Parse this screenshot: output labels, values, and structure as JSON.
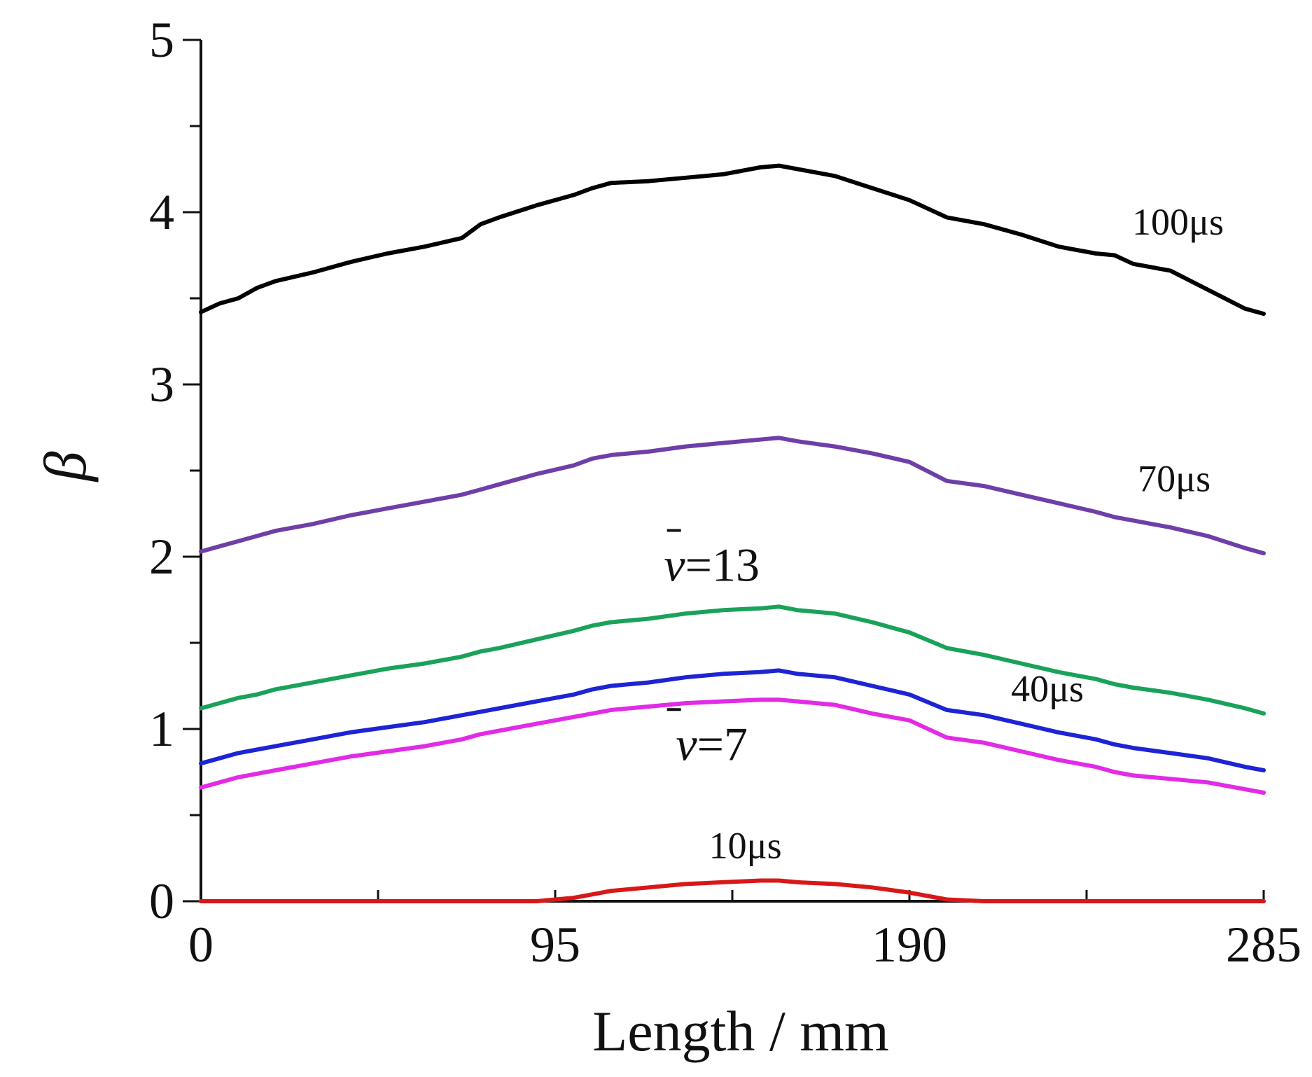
{
  "chart_data": {
    "type": "line",
    "title": "",
    "xlabel": "Length / mm",
    "ylabel": "β",
    "xlim": [
      0,
      285
    ],
    "ylim": [
      0,
      5
    ],
    "x_ticks": [
      0,
      95,
      190,
      285
    ],
    "x_tick_labels": [
      "0",
      "95",
      "190",
      "285"
    ],
    "x_minor_ticks": [
      0,
      47.5,
      95,
      142.5,
      190,
      237.5,
      285
    ],
    "y_ticks": [
      0,
      1,
      2,
      3,
      4,
      5
    ],
    "y_tick_labels": [
      "0",
      "1",
      "2",
      "3",
      "4",
      "5"
    ],
    "y_minor_ticks": [
      0.5,
      1.5,
      2.5,
      3.5,
      4.5
    ],
    "grid": false,
    "x": [
      0,
      5,
      10,
      15,
      20,
      30,
      40,
      50,
      60,
      70,
      75,
      80,
      90,
      100,
      105,
      110,
      120,
      130,
      140,
      150,
      155,
      160,
      170,
      180,
      190,
      200,
      210,
      220,
      230,
      240,
      245,
      250,
      260,
      270,
      280,
      285
    ],
    "series": [
      {
        "name": "100μs",
        "color": "#000000",
        "values": [
          3.42,
          3.47,
          3.5,
          3.56,
          3.6,
          3.65,
          3.71,
          3.76,
          3.8,
          3.85,
          3.93,
          3.97,
          4.04,
          4.1,
          4.14,
          4.17,
          4.18,
          4.2,
          4.22,
          4.26,
          4.27,
          4.25,
          4.21,
          4.14,
          4.07,
          3.97,
          3.93,
          3.87,
          3.8,
          3.76,
          3.75,
          3.7,
          3.66,
          3.55,
          3.44,
          3.41
        ]
      },
      {
        "name": "70μs",
        "color": "#6f3fa8",
        "values": [
          2.03,
          2.06,
          2.09,
          2.12,
          2.15,
          2.19,
          2.24,
          2.28,
          2.32,
          2.36,
          2.39,
          2.42,
          2.48,
          2.53,
          2.57,
          2.59,
          2.61,
          2.64,
          2.66,
          2.68,
          2.69,
          2.67,
          2.64,
          2.6,
          2.55,
          2.44,
          2.41,
          2.36,
          2.31,
          2.26,
          2.23,
          2.21,
          2.17,
          2.12,
          2.05,
          2.02
        ]
      },
      {
        "name": "ν̄=13",
        "color": "#1aa25a",
        "values": [
          1.12,
          1.15,
          1.18,
          1.2,
          1.23,
          1.27,
          1.31,
          1.35,
          1.38,
          1.42,
          1.45,
          1.47,
          1.52,
          1.57,
          1.6,
          1.62,
          1.64,
          1.67,
          1.69,
          1.7,
          1.71,
          1.69,
          1.67,
          1.62,
          1.56,
          1.47,
          1.43,
          1.38,
          1.33,
          1.29,
          1.26,
          1.24,
          1.21,
          1.17,
          1.12,
          1.09
        ]
      },
      {
        "name": "40μs",
        "color": "#1d24d4",
        "values": [
          0.8,
          0.83,
          0.86,
          0.88,
          0.9,
          0.94,
          0.98,
          1.01,
          1.04,
          1.08,
          1.1,
          1.12,
          1.16,
          1.2,
          1.23,
          1.25,
          1.27,
          1.3,
          1.32,
          1.33,
          1.34,
          1.32,
          1.3,
          1.25,
          1.2,
          1.11,
          1.08,
          1.03,
          0.98,
          0.94,
          0.91,
          0.89,
          0.86,
          0.83,
          0.78,
          0.76
        ]
      },
      {
        "name": "ν̄=7",
        "color": "#e22be6",
        "values": [
          0.66,
          0.69,
          0.72,
          0.74,
          0.76,
          0.8,
          0.84,
          0.87,
          0.9,
          0.94,
          0.97,
          0.99,
          1.03,
          1.07,
          1.09,
          1.11,
          1.13,
          1.15,
          1.16,
          1.17,
          1.17,
          1.16,
          1.14,
          1.09,
          1.05,
          0.95,
          0.92,
          0.87,
          0.82,
          0.78,
          0.75,
          0.73,
          0.71,
          0.69,
          0.65,
          0.63
        ]
      },
      {
        "name": "10μs",
        "color": "#d81818",
        "values": [
          0,
          0,
          0,
          0,
          0,
          0,
          0,
          0,
          0,
          0,
          0,
          0,
          0,
          0.02,
          0.04,
          0.06,
          0.08,
          0.1,
          0.11,
          0.12,
          0.12,
          0.11,
          0.1,
          0.08,
          0.05,
          0.01,
          0,
          0,
          0,
          0,
          0,
          0,
          0,
          0,
          0,
          0
        ]
      }
    ],
    "annotations": [
      {
        "name": "100μs",
        "text": "100μs",
        "x": 262,
        "y": 3.87,
        "color": "#111111"
      },
      {
        "name": "70μs",
        "text": "70μs",
        "x": 261,
        "y": 2.38,
        "color": "#111111"
      },
      {
        "name": "ν̄=13",
        "symbol": "ν",
        "text": "=13",
        "x": 137,
        "y": 1.86,
        "color": "#111111"
      },
      {
        "name": "40μs",
        "text": "40μs",
        "x": 227,
        "y": 1.16,
        "color": "#111111"
      },
      {
        "name": "ν̄=7",
        "symbol": "ν",
        "text": "=7",
        "x": 137,
        "y": 0.82,
        "color": "#111111"
      },
      {
        "name": "10μs",
        "text": "10μs",
        "x": 146,
        "y": 0.25,
        "color": "#111111"
      }
    ]
  }
}
